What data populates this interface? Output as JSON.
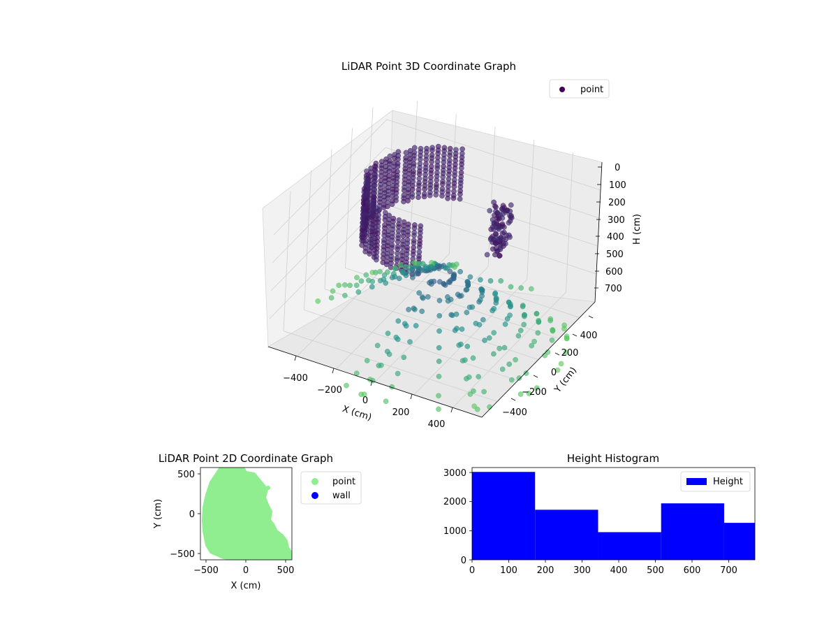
{
  "chart_data": [
    {
      "type": "scatter3d",
      "title": "LiDAR Point 3D Coordinate Graph",
      "xlabel": "X (cm)",
      "ylabel": "Y (cm)",
      "zlabel": "H (cm)",
      "x_ticks": [
        "−400",
        "−200",
        "0",
        "200",
        "400"
      ],
      "y_ticks": [
        "−400",
        "−200",
        "0",
        "200",
        "400"
      ],
      "z_ticks": [
        "0",
        "100",
        "200",
        "300",
        "400",
        "500",
        "600",
        "700"
      ],
      "xlim": [
        -550,
        550
      ],
      "ylim": [
        -550,
        550
      ],
      "zlim": [
        0,
        760
      ],
      "z_inverted": true,
      "colormap": "viridis",
      "grid": true,
      "legend": {
        "position": "top-right",
        "entries": [
          {
            "name": "point",
            "color": "#440154"
          }
        ]
      }
    },
    {
      "type": "scatter",
      "title": "LiDAR Point 2D Coordinate Graph",
      "xlabel": "X (cm)",
      "ylabel": "Y (cm)",
      "x_ticks": [
        "−500",
        "0",
        "500"
      ],
      "y_ticks": [
        "500",
        "0",
        "−500"
      ],
      "xlim": [
        -570,
        570
      ],
      "ylim": [
        -570,
        570
      ],
      "series": [
        {
          "name": "point",
          "color": "#90ee90"
        },
        {
          "name": "wall",
          "color": "#0000ff"
        }
      ],
      "legend": {
        "position": "outside-right"
      }
    },
    {
      "type": "bar",
      "title": "Height Histogram",
      "bin_edges": [
        0,
        172,
        344,
        516,
        688,
        772
      ],
      "values": [
        3020,
        1720,
        950,
        1940,
        1270
      ],
      "x_ticks": [
        "0",
        "100",
        "200",
        "300",
        "400",
        "500",
        "600",
        "700"
      ],
      "y_ticks": [
        "0",
        "1000",
        "2000",
        "3000"
      ],
      "xlim": [
        0,
        772
      ],
      "ylim": [
        0,
        3170
      ],
      "color": "#0000ff",
      "legend": {
        "position": "top-right",
        "entries": [
          {
            "name": "Height",
            "color": "#0000ff"
          }
        ]
      }
    }
  ]
}
